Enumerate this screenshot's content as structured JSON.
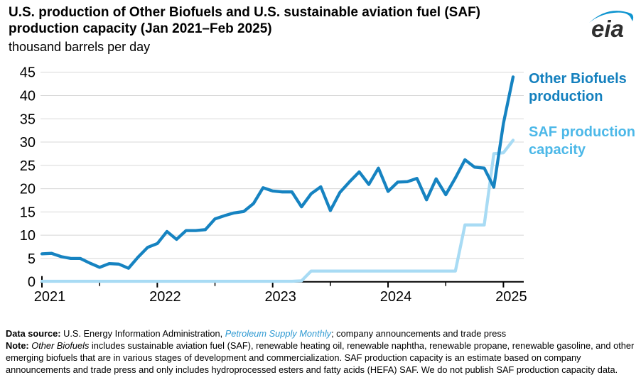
{
  "header": {
    "title_line1": "U.S. production of Other Biofuels and U.S. sustainable aviation fuel (SAF)",
    "title_line2": "production capacity (Jan 2021–Feb 2025)",
    "subtitle": "thousand barrels per day",
    "logo_text": "eia"
  },
  "legend": {
    "series1_label": "Other Biofuels production",
    "series2_label": "SAF production capacity"
  },
  "colors": {
    "biofuels_line": "#1683c1",
    "biofuels_label": "#1480be",
    "saf_line": "#a8dbf4",
    "saf_label": "#4cb8e8",
    "gridline": "#d8d8d8",
    "axis": "#000000",
    "link": "#2f9ad2",
    "logo_swoosh": "#0f95d0",
    "logo_text": "#2f2f2f"
  },
  "chart_data": {
    "type": "line",
    "title": "U.S. production of Other Biofuels and U.S. sustainable aviation fuel (SAF) production capacity (Jan 2021–Feb 2025)",
    "ylabel": "thousand barrels per day",
    "ylim": [
      0,
      45
    ],
    "y_ticks": [
      0,
      5,
      10,
      15,
      20,
      25,
      30,
      35,
      40,
      45
    ],
    "x_tick_labels": [
      "2021",
      "2022",
      "2023",
      "2024",
      "2025"
    ],
    "grid": "horizontal",
    "legend_position": "right",
    "x_months": [
      "2021-01",
      "2021-02",
      "2021-03",
      "2021-04",
      "2021-05",
      "2021-06",
      "2021-07",
      "2021-08",
      "2021-09",
      "2021-10",
      "2021-11",
      "2021-12",
      "2022-01",
      "2022-02",
      "2022-03",
      "2022-04",
      "2022-05",
      "2022-06",
      "2022-07",
      "2022-08",
      "2022-09",
      "2022-10",
      "2022-11",
      "2022-12",
      "2023-01",
      "2023-02",
      "2023-03",
      "2023-04",
      "2023-05",
      "2023-06",
      "2023-07",
      "2023-08",
      "2023-09",
      "2023-10",
      "2023-11",
      "2023-12",
      "2024-01",
      "2024-02",
      "2024-03",
      "2024-04",
      "2024-05",
      "2024-06",
      "2024-07",
      "2024-08",
      "2024-09",
      "2024-10",
      "2024-11",
      "2024-12",
      "2025-01",
      "2025-02"
    ],
    "series": [
      {
        "id": "saf-capacity-line",
        "name": "SAF production capacity",
        "color_key": "saf_line",
        "values": [
          0.1,
          0.1,
          0.1,
          0.1,
          0.1,
          0.1,
          0.1,
          0.1,
          0.1,
          0.1,
          0.1,
          0.1,
          0.1,
          0.1,
          0.1,
          0.1,
          0.1,
          0.1,
          0.1,
          0.1,
          0.1,
          0.1,
          0.1,
          0.1,
          0.1,
          0.1,
          0.1,
          0.2,
          2.3,
          2.3,
          2.3,
          2.3,
          2.3,
          2.3,
          2.3,
          2.3,
          2.3,
          2.3,
          2.3,
          2.3,
          2.3,
          2.3,
          2.3,
          2.3,
          12.2,
          12.2,
          12.2,
          27.5,
          27.7,
          30.4
        ]
      },
      {
        "id": "other-biofuels-line",
        "name": "Other Biofuels production",
        "color_key": "biofuels_line",
        "values": [
          6.0,
          6.1,
          5.4,
          5.0,
          5.0,
          4.0,
          3.1,
          3.9,
          3.8,
          2.9,
          5.3,
          7.4,
          8.2,
          10.8,
          9.1,
          11.0,
          11.0,
          11.2,
          13.5,
          14.2,
          14.8,
          15.1,
          16.8,
          20.2,
          19.5,
          19.3,
          19.3,
          16.1,
          18.9,
          20.4,
          15.3,
          19.2,
          21.5,
          23.6,
          20.9,
          24.4,
          19.4,
          21.4,
          21.5,
          22.2,
          17.6,
          22.1,
          18.7,
          22.3,
          26.2,
          24.6,
          24.4,
          20.3,
          34.0,
          44.0
        ]
      }
    ]
  },
  "footer": {
    "line1_segments": [
      {
        "t": "Data source: ",
        "s": "b"
      },
      {
        "t": "U.S. Energy Information Administration, ",
        "s": "n"
      },
      {
        "t": "Petroleum Supply Monthly",
        "s": "il"
      },
      {
        "t": "; company announcements and trade press",
        "s": "n"
      }
    ],
    "note_segments": [
      {
        "t": "Note: ",
        "s": "b"
      },
      {
        "t": "Other Biofuels",
        "s": "i"
      },
      {
        "t": " includes sustainable aviation fuel (SAF), renewable heating oil, renewable naphtha, renewable propane, renewable gasoline, and other emerging biofuels that are in various stages of development and commercialization. SAF production capacity is an estimate based on company announcements and trade press and only includes hydroprocessed esters and fatty acids (HEFA) SAF. We do not publish SAF production capacity data.",
        "s": "n"
      }
    ]
  }
}
